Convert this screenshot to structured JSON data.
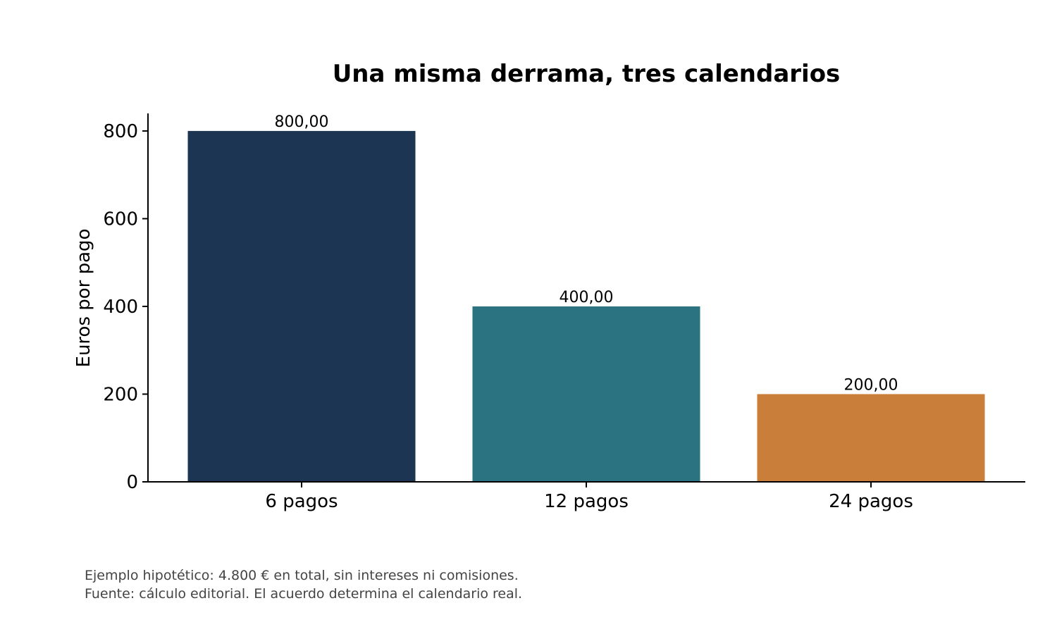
{
  "chart_data": {
    "type": "bar",
    "title": "Una misma derrama, tres calendarios",
    "xlabel": "",
    "ylabel": "Euros por pago",
    "categories": [
      "6 pagos",
      "12 pagos",
      "24 pagos"
    ],
    "values": [
      800,
      400,
      200
    ],
    "value_labels": [
      "800,00",
      "400,00",
      "200,00"
    ],
    "colors": [
      "#1b3552",
      "#2b7381",
      "#c97e39"
    ],
    "ylim": [
      0,
      840
    ],
    "yticks": [
      0,
      200,
      400,
      600,
      800
    ],
    "ytick_labels": [
      "0",
      "200",
      "400",
      "600",
      "800"
    ],
    "grid": false,
    "legend": "none"
  },
  "footnotes": {
    "line1": "Ejemplo hipotético: 4.800 € en total, sin intereses ni comisiones.",
    "line2": "Fuente: cálculo editorial. El acuerdo determina el calendario real."
  }
}
